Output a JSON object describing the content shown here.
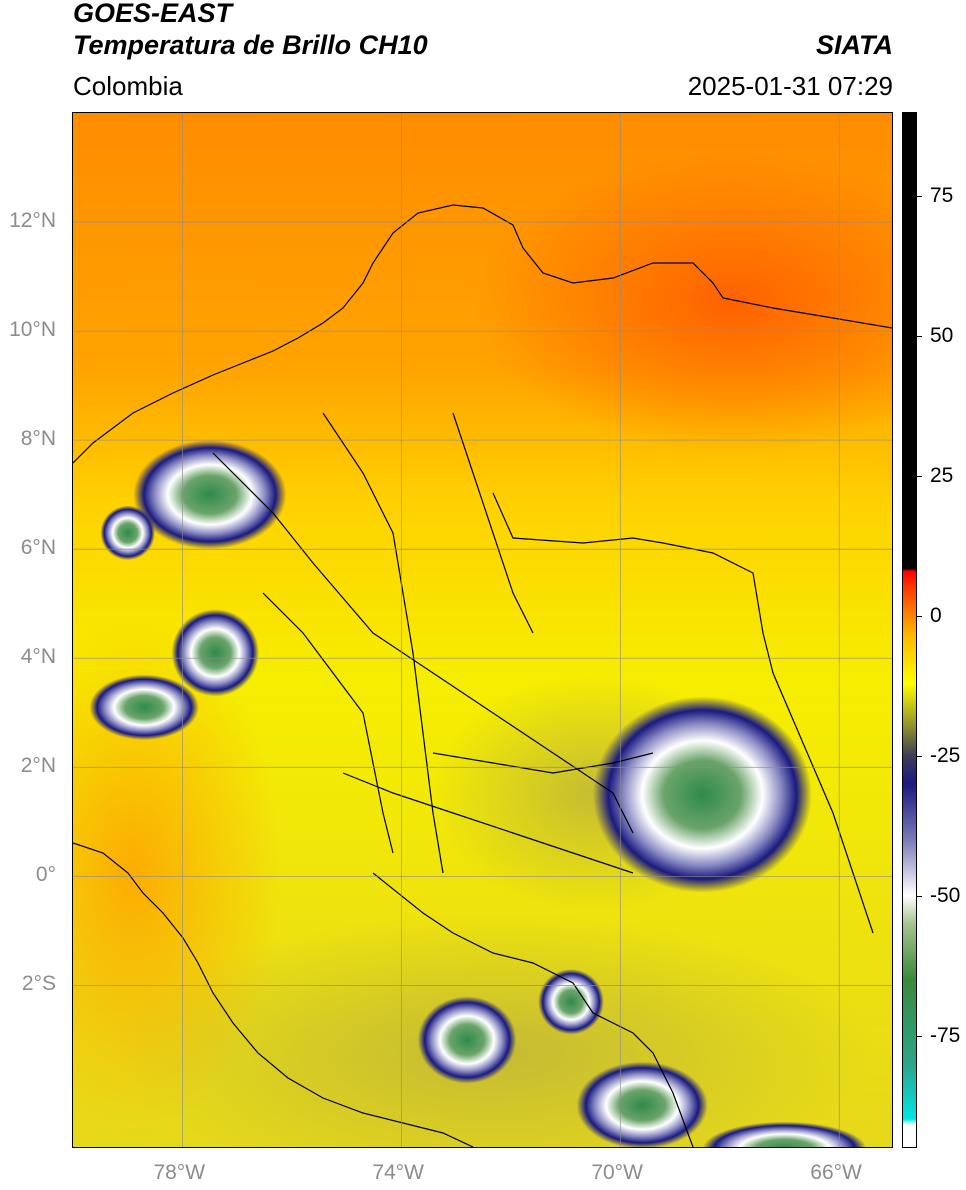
{
  "header": {
    "satellite": "GOES-EAST",
    "product": "Temperatura de Brillo CH10",
    "region": "Colombia",
    "organization": "SIATA",
    "datetime": "2025-01-31 07:29"
  },
  "map": {
    "extent": {
      "lon_min": -80,
      "lon_max": -65,
      "lat_min": -5,
      "lat_max": 14
    },
    "lat_ticks": [
      {
        "value": 12,
        "label": "12°N"
      },
      {
        "value": 10,
        "label": "10°N"
      },
      {
        "value": 8,
        "label": "8°N"
      },
      {
        "value": 6,
        "label": "6°N"
      },
      {
        "value": 4,
        "label": "4°N"
      },
      {
        "value": 2,
        "label": "2°N"
      },
      {
        "value": 0,
        "label": "0°"
      },
      {
        "value": -2,
        "label": "2°S"
      }
    ],
    "lon_ticks": [
      {
        "value": -78,
        "label": "78°W"
      },
      {
        "value": -74,
        "label": "74°W"
      },
      {
        "value": -70,
        "label": "70°W"
      },
      {
        "value": -66,
        "label": "66°W"
      }
    ],
    "grid": true,
    "cloud_systems": [
      {
        "lon": -77.5,
        "lat": 7.0,
        "rx": 1.4,
        "ry": 1.0
      },
      {
        "lon": -79.0,
        "lat": 6.3,
        "rx": 0.5,
        "ry": 0.5
      },
      {
        "lon": -77.4,
        "lat": 4.1,
        "rx": 0.8,
        "ry": 0.8
      },
      {
        "lon": -78.7,
        "lat": 3.1,
        "rx": 1.0,
        "ry": 0.6
      },
      {
        "lon": -68.5,
        "lat": 1.5,
        "rx": 2.0,
        "ry": 1.8
      },
      {
        "lon": -72.8,
        "lat": -3.0,
        "rx": 0.9,
        "ry": 0.8
      },
      {
        "lon": -70.9,
        "lat": -2.3,
        "rx": 0.6,
        "ry": 0.6
      },
      {
        "lon": -69.6,
        "lat": -4.2,
        "rx": 1.2,
        "ry": 0.8
      },
      {
        "lon": -67.0,
        "lat": -5.0,
        "rx": 1.5,
        "ry": 0.5
      }
    ]
  },
  "colorbar": {
    "min": -95,
    "max": 90,
    "ticks": [
      {
        "value": 75,
        "label": "75"
      },
      {
        "value": 50,
        "label": "50"
      },
      {
        "value": 25,
        "label": "25"
      },
      {
        "value": 0,
        "label": "0"
      },
      {
        "value": -25,
        "label": "-25"
      },
      {
        "value": -50,
        "label": "-50"
      },
      {
        "value": -75,
        "label": "-75"
      }
    ],
    "stops": [
      {
        "value": -95,
        "color": "#ffffff"
      },
      {
        "value": -91,
        "color": "#ffffff"
      },
      {
        "value": -90,
        "color": "#00e5e5"
      },
      {
        "value": -80,
        "color": "#2ba58a"
      },
      {
        "value": -65,
        "color": "#3a8a3a"
      },
      {
        "value": -55,
        "color": "#a6c48e"
      },
      {
        "value": -50,
        "color": "#ffffff"
      },
      {
        "value": -40,
        "color": "#7a7ab8"
      },
      {
        "value": -30,
        "color": "#1a1a80"
      },
      {
        "value": -25,
        "color": "#3d3d5a"
      },
      {
        "value": -20,
        "color": "#8c8c30"
      },
      {
        "value": -12,
        "color": "#ffff00"
      },
      {
        "value": -3,
        "color": "#ffb300"
      },
      {
        "value": 5,
        "color": "#ff3b00"
      },
      {
        "value": 8,
        "color": "#ff0000"
      },
      {
        "value": 8.5,
        "color": "#000000"
      },
      {
        "value": 90,
        "color": "#000000"
      }
    ]
  },
  "colors": {
    "ocean_warm": "#ff9a00",
    "ocean_hot": "#ff6a00",
    "land_yellow": "#f5ef00",
    "land_olive": "#c9c23a",
    "cloud_navy": "#1a1a7a",
    "cloud_white": "#ffffff",
    "cloud_green": "#3a8a4a",
    "gridline": "#8c8c8c"
  }
}
